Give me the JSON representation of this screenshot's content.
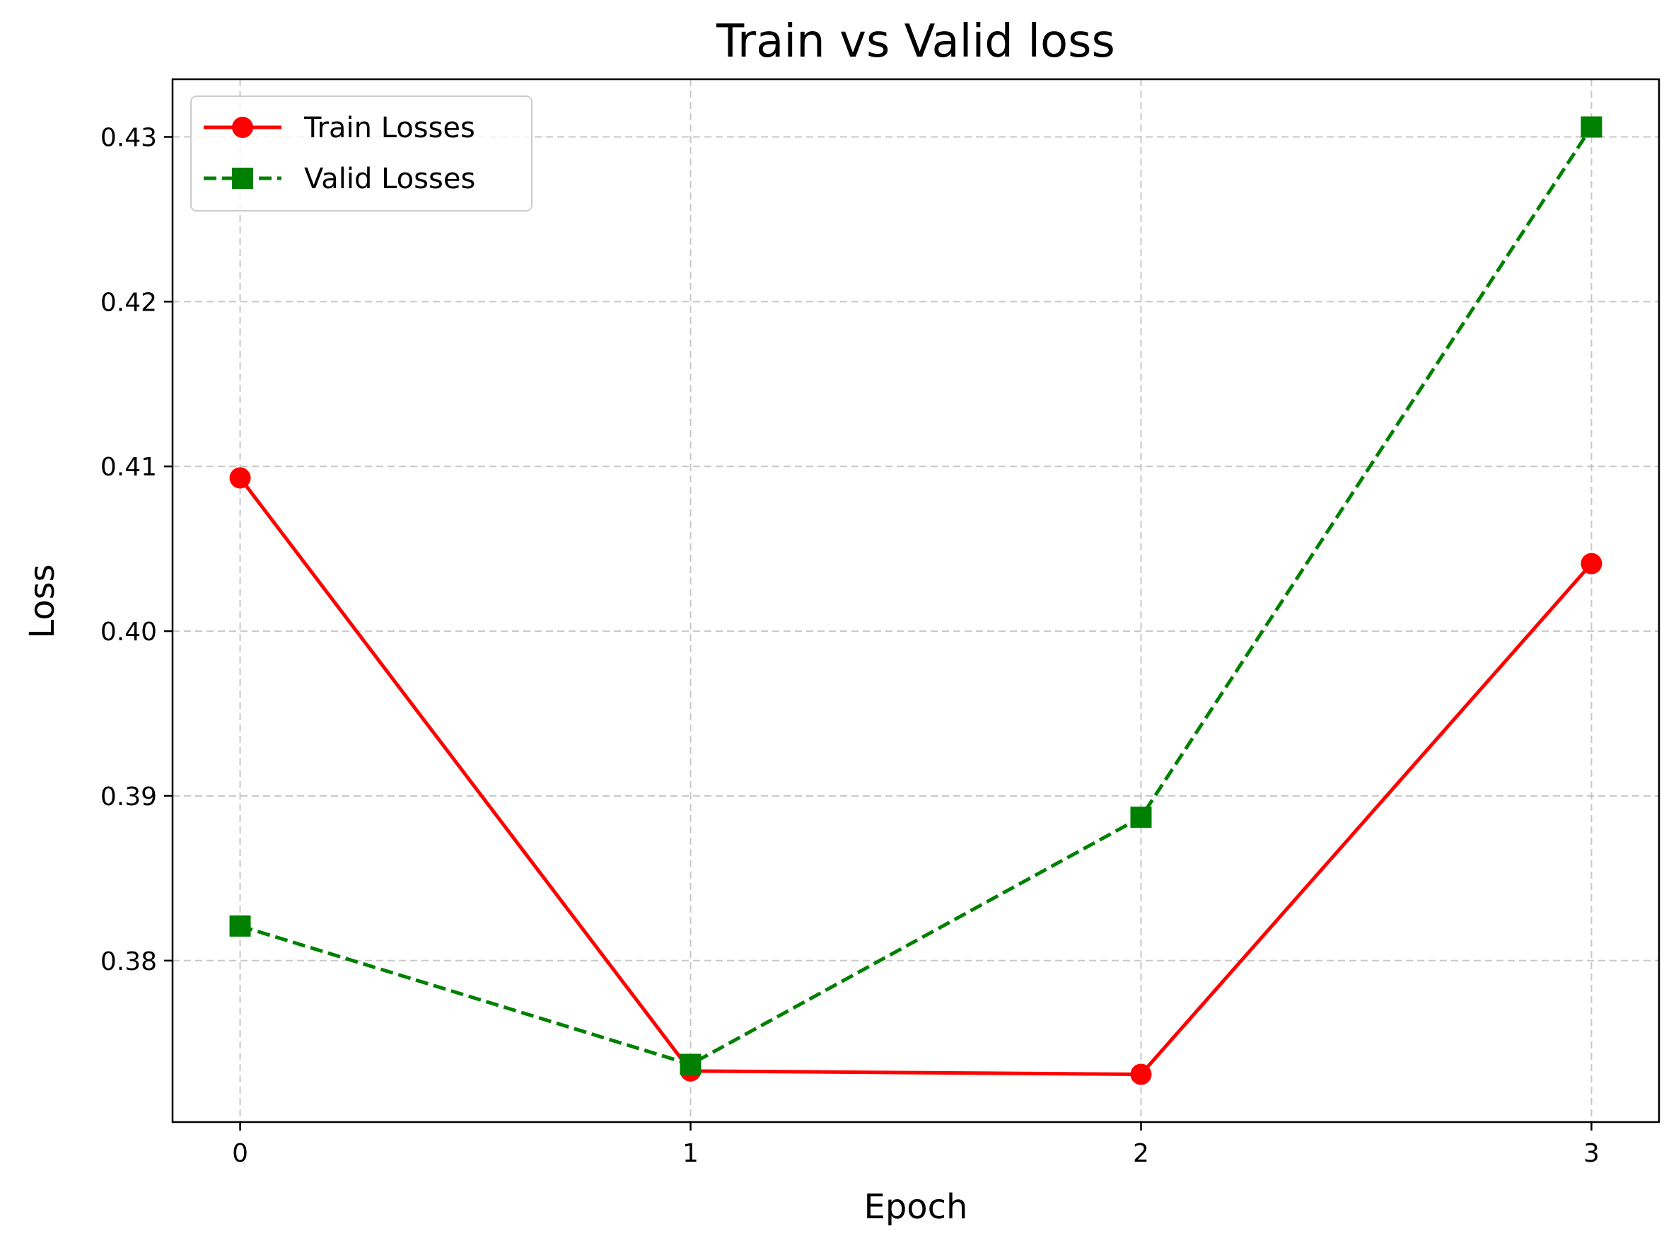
{
  "chart_data": {
    "type": "line",
    "title": "Train vs Valid loss",
    "xlabel": "Epoch",
    "ylabel": "Loss",
    "x": [
      0,
      1,
      2,
      3
    ],
    "xticks": [
      "0",
      "1",
      "2",
      "3"
    ],
    "yticks": [
      "0.38",
      "0.39",
      "0.40",
      "0.41",
      "0.42",
      "0.43"
    ],
    "xlim": [
      -0.15,
      3.15
    ],
    "ylim": [
      0.3702,
      0.4335
    ],
    "grid": true,
    "legend_position": "top-left",
    "series": [
      {
        "name": "Train Losses",
        "values": [
          0.4093,
          0.3733,
          0.3731,
          0.4041
        ],
        "color": "#ff0000",
        "line_style": "solid",
        "marker": "circle"
      },
      {
        "name": "Valid Losses",
        "values": [
          0.3821,
          0.3737,
          0.3887,
          0.4306
        ],
        "color": "#008000",
        "line_style": "dashed",
        "marker": "square"
      }
    ]
  }
}
